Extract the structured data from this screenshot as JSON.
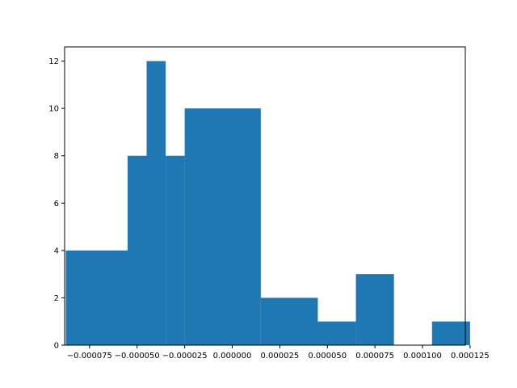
{
  "chart_data": {
    "type": "bar",
    "bins": [
      {
        "x0": -8.75e-05,
        "x1": -5.5e-05,
        "count": 4
      },
      {
        "x0": -5.5e-05,
        "x1": -4.5e-05,
        "count": 8
      },
      {
        "x0": -4.5e-05,
        "x1": -3.5e-05,
        "count": 12
      },
      {
        "x0": -3.5e-05,
        "x1": -2.5e-05,
        "count": 8
      },
      {
        "x0": -2.5e-05,
        "x1": 1.5e-05,
        "count": 10
      },
      {
        "x0": 1.5e-05,
        "x1": 4.5e-05,
        "count": 2
      },
      {
        "x0": 4.5e-05,
        "x1": 6.5e-05,
        "count": 1
      },
      {
        "x0": 6.5e-05,
        "x1": 8.5e-05,
        "count": 3
      },
      {
        "x0": 8.5e-05,
        "x1": 0.000105,
        "count": 0
      },
      {
        "x0": 0.000105,
        "x1": 0.000125,
        "count": 1
      }
    ],
    "x_ticks": [
      {
        "value": -7.5e-05,
        "label": "−0.000075"
      },
      {
        "value": -5e-05,
        "label": "−0.000050"
      },
      {
        "value": -2.5e-05,
        "label": "−0.000025"
      },
      {
        "value": 0.0,
        "label": "0.000000"
      },
      {
        "value": 2.5e-05,
        "label": "0.000025"
      },
      {
        "value": 5e-05,
        "label": "0.000050"
      },
      {
        "value": 7.5e-05,
        "label": "0.000075"
      },
      {
        "value": 0.0001,
        "label": "0.000100"
      },
      {
        "value": 0.000125,
        "label": "0.000125"
      }
    ],
    "y_ticks": [
      {
        "value": 0,
        "label": "0"
      },
      {
        "value": 2,
        "label": "2"
      },
      {
        "value": 4,
        "label": "4"
      },
      {
        "value": 6,
        "label": "6"
      },
      {
        "value": 8,
        "label": "8"
      },
      {
        "value": 10,
        "label": "10"
      },
      {
        "value": 12,
        "label": "12"
      }
    ],
    "xlim": [
      -8.81e-05,
      0.0001225
    ],
    "ylim": [
      0,
      12.6
    ],
    "bar_color": "#1f77b4",
    "grid": false,
    "title": "",
    "xlabel": "",
    "ylabel": ""
  }
}
